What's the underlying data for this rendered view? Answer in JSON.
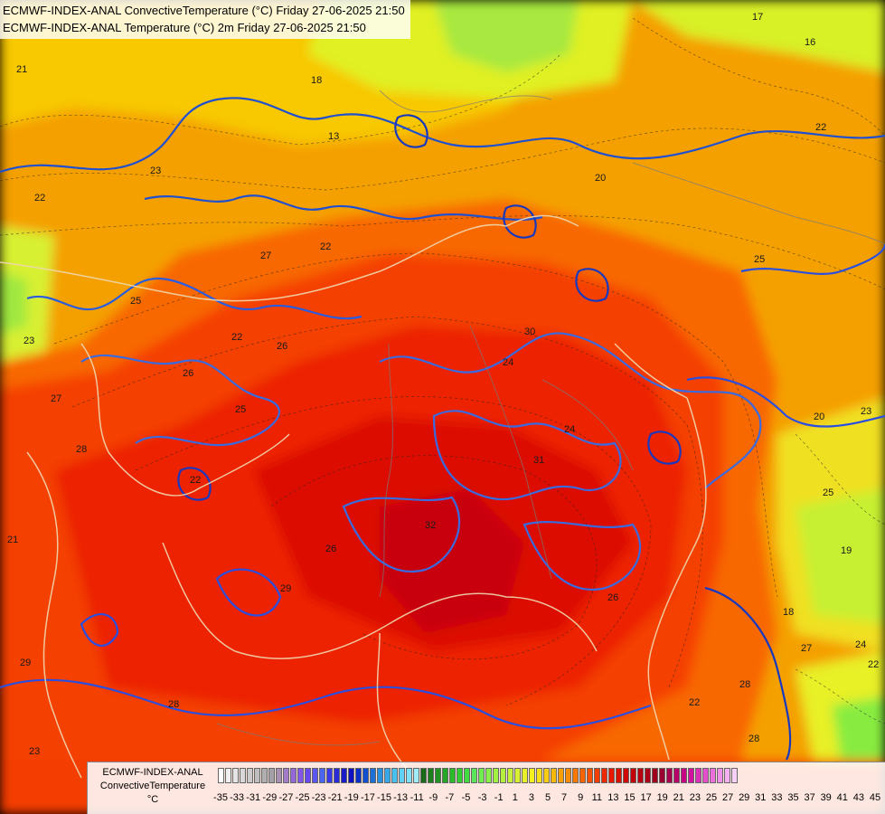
{
  "header": {
    "line1": "ECMWF-INDEX-ANAL ConvectiveTemperature (°C) Friday 27-06-2025 21:50",
    "line2": "ECMWF-INDEX-ANAL Temperature (°C) 2m Friday 27-06-2025 21:50"
  },
  "legend": {
    "line1": "ECMWF-INDEX-ANAL",
    "line2": "ConvectiveTemperature",
    "unit": "°C",
    "ticks": [
      "-35",
      "-33",
      "-31",
      "-29",
      "-27",
      "-25",
      "-23",
      "-21",
      "-19",
      "-17",
      "-15",
      "-13",
      "-11",
      "-9",
      "-7",
      "-5",
      "-3",
      "-1",
      "1",
      "3",
      "5",
      "7",
      "9",
      "11",
      "13",
      "15",
      "17",
      "19",
      "21",
      "23",
      "25",
      "27",
      "29",
      "31",
      "33",
      "35",
      "37",
      "39",
      "41",
      "43",
      "45"
    ],
    "colors": [
      "#ffffff",
      "#f0f0f0",
      "#e4e4e4",
      "#d8d8d8",
      "#cbcbcb",
      "#bebebe",
      "#b0b0b0",
      "#a4a0a8",
      "#a890b0",
      "#a27cc8",
      "#9468d8",
      "#8256e8",
      "#6a48f0",
      "#5a58f0",
      "#4a66f0",
      "#3a38e8",
      "#2a2ad8",
      "#1a1ac8",
      "#1010c0",
      "#0a30c8",
      "#1050d0",
      "#1c70d8",
      "#2a90e0",
      "#38a8e8",
      "#48c0f0",
      "#60d0f4",
      "#80e0f8",
      "#a0ecfc",
      "#1a6a1a",
      "#1e7e1e",
      "#229222",
      "#26a626",
      "#2aba2a",
      "#32ce32",
      "#40dc40",
      "#5ae65a",
      "#70ee50",
      "#88f048",
      "#a0f040",
      "#b4f03c",
      "#c8f038",
      "#d8f030",
      "#e8f028",
      "#f4f020",
      "#f8e018",
      "#f8cc10",
      "#f8b808",
      "#f8a000",
      "#f88c00",
      "#f87800",
      "#f86400",
      "#f85000",
      "#f43c00",
      "#f02800",
      "#e81800",
      "#dc1000",
      "#d00808",
      "#c40008",
      "#b80010",
      "#ac0018",
      "#a0001c",
      "#9a0030",
      "#a8004c",
      "#b80068",
      "#c80084",
      "#d410a0",
      "#dc30b8",
      "#e450cc",
      "#ec70dc",
      "#f090e8",
      "#f4b0f0",
      "#f8d0f8"
    ]
  },
  "map": {
    "contour_labels": [
      "21",
      "18",
      "13",
      "17",
      "16",
      "22",
      "23",
      "22",
      "20",
      "27",
      "22",
      "25",
      "25",
      "23",
      "22",
      "26",
      "26",
      "27",
      "25",
      "22",
      "24",
      "30",
      "24",
      "31",
      "32",
      "25",
      "28",
      "29",
      "26",
      "21",
      "29",
      "23",
      "28",
      "22",
      "19",
      "28",
      "20",
      "23",
      "18",
      "27",
      "24",
      "22",
      "26",
      "28"
    ]
  }
}
